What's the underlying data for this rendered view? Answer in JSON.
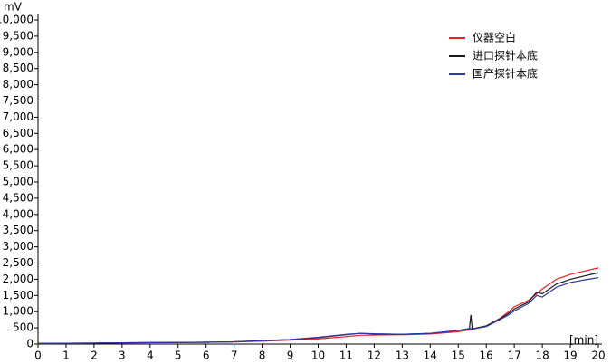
{
  "chart_data": {
    "type": "line",
    "ylabel": "mV",
    "xlabel": "[min]",
    "x": [
      0,
      1,
      2,
      3,
      4,
      5,
      6,
      7,
      8,
      9,
      10,
      11,
      11.5,
      12,
      13,
      14,
      15,
      15.4,
      15.45,
      15.5,
      16,
      16.5,
      16.8,
      17,
      17.5,
      17.8,
      18,
      18.5,
      19,
      19.5,
      20
    ],
    "series": [
      {
        "name": "仪器空白",
        "color": "#e8202a",
        "values": [
          20,
          25,
          30,
          35,
          40,
          45,
          55,
          65,
          90,
          120,
          160,
          230,
          270,
          280,
          290,
          310,
          380,
          440,
          450,
          460,
          560,
          800,
          1000,
          1150,
          1350,
          1550,
          1700,
          2000,
          2150,
          2250,
          2350
        ]
      },
      {
        "name": "进口探针本底",
        "color": "#1a1a1a",
        "values": [
          20,
          25,
          30,
          40,
          45,
          50,
          55,
          70,
          110,
          140,
          200,
          290,
          330,
          310,
          300,
          330,
          420,
          480,
          900,
          470,
          560,
          780,
          950,
          1080,
          1300,
          1600,
          1550,
          1850,
          2000,
          2100,
          2200
        ]
      },
      {
        "name": "国产探针本底",
        "color": "#2a3aa8",
        "values": [
          20,
          25,
          30,
          40,
          45,
          50,
          55,
          70,
          100,
          140,
          210,
          300,
          330,
          320,
          300,
          330,
          420,
          470,
          480,
          460,
          540,
          760,
          900,
          1020,
          1250,
          1500,
          1450,
          1750,
          1900,
          1980,
          2050
        ]
      }
    ],
    "xlim": [
      0,
      20
    ],
    "xticks": [
      0,
      1,
      2,
      3,
      4,
      5,
      6,
      7,
      8,
      9,
      10,
      11,
      12,
      13,
      14,
      15,
      16,
      17,
      18,
      19,
      20
    ],
    "ylim": [
      0,
      10000
    ],
    "yticks": [
      0,
      500,
      {
        "value": 1000,
        "label": "1,000"
      },
      {
        "value": 1500,
        "label": "1,500"
      },
      {
        "value": 2000,
        "label": "2,000"
      },
      {
        "value": 2500,
        "label": "2,500"
      },
      {
        "value": 3000,
        "label": "3,000"
      },
      {
        "value": 3500,
        "label": "3,500"
      },
      {
        "value": 4000,
        "label": "4,000"
      },
      {
        "value": 4500,
        "label": "4,500"
      },
      {
        "value": 5000,
        "label": "5,000"
      },
      {
        "value": 5500,
        "label": "5,500"
      },
      {
        "value": 6000,
        "label": "6,000"
      },
      {
        "value": 6500,
        "label": "6,500"
      },
      {
        "value": 7000,
        "label": "7,000"
      },
      {
        "value": 7500,
        "label": "7,500"
      },
      {
        "value": 8000,
        "label": "8,000"
      },
      {
        "value": 8500,
        "label": "8,500"
      },
      {
        "value": 9000,
        "label": "9,000"
      },
      {
        "value": 9500,
        "label": "9,500"
      },
      {
        "value": 10000,
        "label": "10,000"
      }
    ],
    "legend": "upper-right"
  }
}
